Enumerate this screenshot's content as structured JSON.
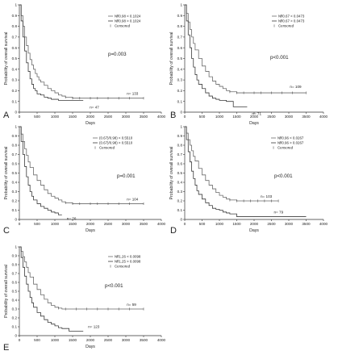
{
  "chart_data": [
    {
      "panel": "A",
      "type": "line",
      "ylabel": "Probability of overall survival",
      "xlabel": "Days",
      "xlim": [
        0,
        4000
      ],
      "ylim": [
        0,
        1
      ],
      "xticks": [
        "0",
        "500",
        "1000",
        "1500",
        "2000",
        "2500",
        "3000",
        "3500",
        "4000"
      ],
      "yticks": [
        "0",
        "0.1",
        "0.2",
        "0.3",
        "0.4",
        "0.5",
        "0.6",
        "0.7",
        "0.8",
        "0.9",
        "1"
      ],
      "legend": [
        "Nfl0.98 < 0.1024",
        "Nfl0.98 > 0.1024",
        "Censored"
      ],
      "pvalue": "p=0.003",
      "series": [
        {
          "name": "Nfl0.98 < 0.1024",
          "n_label": "n= 133",
          "x": [
            0,
            50,
            100,
            150,
            200,
            250,
            300,
            350,
            400,
            450,
            500,
            550,
            600,
            700,
            800,
            900,
            1000,
            1100,
            1200,
            1300,
            1500,
            3500
          ],
          "y": [
            1.0,
            0.9,
            0.8,
            0.7,
            0.62,
            0.55,
            0.49,
            0.44,
            0.4,
            0.36,
            0.33,
            0.3,
            0.28,
            0.25,
            0.22,
            0.2,
            0.18,
            0.16,
            0.15,
            0.14,
            0.13,
            0.13
          ],
          "censored_x": [
            1300,
            1500,
            1700,
            2000,
            2200,
            2500,
            2800,
            3100,
            3500
          ]
        },
        {
          "name": "Nfl0.98 > 0.1024",
          "n_label": "n= 47",
          "x": [
            0,
            50,
            100,
            150,
            200,
            250,
            300,
            350,
            400,
            450,
            500,
            600,
            700,
            800,
            900,
            1000,
            1100,
            1800
          ],
          "y": [
            1.0,
            0.85,
            0.7,
            0.57,
            0.46,
            0.38,
            0.31,
            0.26,
            0.22,
            0.2,
            0.17,
            0.16,
            0.14,
            0.13,
            0.12,
            0.12,
            0.11,
            0.11
          ],
          "censored_x": []
        }
      ]
    },
    {
      "panel": "B",
      "type": "line",
      "ylabel": "Probability of overall survival",
      "xlabel": "Days",
      "xlim": [
        0,
        4000
      ],
      "ylim": [
        0,
        1
      ],
      "xticks": [
        "0",
        "500",
        "1000",
        "1500",
        "2000",
        "2500",
        "3000",
        "3500",
        "4000"
      ],
      "yticks": [
        "0",
        "0.1",
        "0.2",
        "0.3",
        "0.4",
        "0.5",
        "0.6",
        "0.7",
        "0.8",
        "0.9",
        "1"
      ],
      "legend": [
        "Nfl0.67 < 0.0473",
        "Nfl0.67 > 0.0473",
        "Censored"
      ],
      "pvalue": "p<0.001",
      "series": [
        {
          "name": "Nfl0.67 < 0.0473",
          "n_label": "n= 109",
          "x": [
            0,
            50,
            100,
            150,
            200,
            250,
            300,
            400,
            500,
            600,
            700,
            800,
            900,
            1000,
            1100,
            1200,
            1300,
            1500,
            3500
          ],
          "y": [
            1.0,
            0.92,
            0.84,
            0.77,
            0.7,
            0.64,
            0.58,
            0.5,
            0.43,
            0.38,
            0.33,
            0.29,
            0.26,
            0.24,
            0.22,
            0.2,
            0.19,
            0.18,
            0.18
          ],
          "censored_x": [
            1300,
            1500,
            1700,
            2000,
            2200,
            2500,
            2800,
            3100,
            3500
          ]
        },
        {
          "name": "Nfl0.67 > 0.0473",
          "n_label": "n= 71",
          "x": [
            0,
            50,
            100,
            150,
            200,
            250,
            300,
            350,
            400,
            500,
            600,
            700,
            800,
            900,
            1000,
            1200,
            1400,
            1500,
            1800
          ],
          "y": [
            1.0,
            0.85,
            0.72,
            0.6,
            0.5,
            0.42,
            0.35,
            0.3,
            0.26,
            0.22,
            0.18,
            0.15,
            0.13,
            0.12,
            0.11,
            0.1,
            0.05,
            0.05,
            0.05
          ],
          "censored_x": []
        }
      ]
    },
    {
      "panel": "C",
      "type": "line",
      "ylabel": "Probability of overall survival",
      "xlabel": "Days",
      "xlim": [
        0,
        4000
      ],
      "ylim": [
        0,
        1
      ],
      "xticks": [
        "0",
        "500",
        "1000",
        "1500",
        "2000",
        "2500",
        "3000",
        "3500",
        "4000"
      ],
      "yticks": [
        "0",
        "0.1",
        "0.2",
        "0.3",
        "0.4",
        "0.5",
        "0.6",
        "0.7",
        "0.8",
        "0.9",
        "1"
      ],
      "legend": [
        "(0.67)/0.98) < 0.5510",
        "(0.67)/0.98) > 0.5510",
        "Censored"
      ],
      "pvalue": "p=0.001",
      "series": [
        {
          "name": "(0.67)/0.98) < 0.5510",
          "n_label": "n= 104",
          "x": [
            0,
            50,
            100,
            150,
            200,
            250,
            300,
            400,
            500,
            600,
            700,
            800,
            900,
            1000,
            1100,
            1200,
            1300,
            1500,
            3500
          ],
          "y": [
            1.0,
            0.92,
            0.84,
            0.76,
            0.69,
            0.62,
            0.56,
            0.48,
            0.42,
            0.37,
            0.32,
            0.28,
            0.25,
            0.23,
            0.21,
            0.19,
            0.18,
            0.17,
            0.17
          ],
          "censored_x": [
            1300,
            1500,
            1700,
            2000,
            2200,
            2500,
            2800,
            3100,
            3500
          ]
        },
        {
          "name": "(0.67)/0.98) > 0.5510",
          "n_label": "n= 76",
          "x": [
            0,
            50,
            100,
            150,
            200,
            250,
            300,
            350,
            400,
            500,
            600,
            700,
            800,
            900,
            1000,
            1100,
            1200
          ],
          "y": [
            1.0,
            0.84,
            0.7,
            0.57,
            0.46,
            0.37,
            0.3,
            0.25,
            0.21,
            0.17,
            0.14,
            0.12,
            0.1,
            0.08,
            0.07,
            0.05,
            0.05
          ],
          "censored_x": []
        }
      ]
    },
    {
      "panel": "D",
      "type": "line",
      "ylabel": "Probability of overall survival",
      "xlabel": "Days",
      "xlim": [
        0,
        4000
      ],
      "ylim": [
        0,
        1
      ],
      "xticks": [
        "0",
        "500",
        "1000",
        "1500",
        "2000",
        "2500",
        "3000",
        "3500",
        "4000"
      ],
      "yticks": [
        "0",
        "0.1",
        "0.2",
        "0.3",
        "0.4",
        "0.5",
        "0.6",
        "0.7",
        "0.8",
        "0.9",
        "1"
      ],
      "legend": [
        "Nfl0.96 < 0.0267",
        "Nfl0.96 > 0.0267",
        "Censored"
      ],
      "pvalue": "p<0.001",
      "series": [
        {
          "name": "Nfl0.96 < 0.0267",
          "n_label": "n= 103",
          "x": [
            0,
            50,
            100,
            150,
            200,
            250,
            300,
            400,
            500,
            600,
            700,
            800,
            900,
            1000,
            1100,
            1200,
            1300,
            1500,
            2700
          ],
          "y": [
            1.0,
            0.93,
            0.86,
            0.8,
            0.74,
            0.68,
            0.63,
            0.55,
            0.48,
            0.42,
            0.37,
            0.33,
            0.29,
            0.26,
            0.24,
            0.22,
            0.21,
            0.2,
            0.2
          ],
          "censored_x": [
            1300,
            1500,
            1700,
            1900,
            2100,
            2300,
            2500,
            2700
          ]
        },
        {
          "name": "Nfl0.96 > 0.0267",
          "n_label": "n= 79",
          "x": [
            0,
            50,
            100,
            150,
            200,
            250,
            300,
            350,
            400,
            500,
            600,
            700,
            800,
            900,
            1000,
            1100,
            1200,
            1300,
            1500,
            3500
          ],
          "y": [
            1.0,
            0.86,
            0.73,
            0.62,
            0.52,
            0.44,
            0.37,
            0.31,
            0.27,
            0.22,
            0.18,
            0.15,
            0.12,
            0.11,
            0.1,
            0.08,
            0.07,
            0.06,
            0.03,
            0.03
          ],
          "censored_x": []
        }
      ]
    },
    {
      "panel": "E",
      "type": "line",
      "ylabel": "Probability of overall survival",
      "xlabel": "Days",
      "xlim": [
        0,
        4000
      ],
      "ylim": [
        0,
        1
      ],
      "xticks": [
        "0",
        "500",
        "1000",
        "1500",
        "2000",
        "2500",
        "3000",
        "3500",
        "4000"
      ],
      "yticks": [
        "0",
        "0.1",
        "0.2",
        "0.3",
        "0.4",
        "0.5",
        "0.6",
        "0.7",
        "0.8",
        "0.9",
        "1"
      ],
      "legend": [
        "Nfl1.26 < 0.0098",
        "Nfl1.25 > 0.0098",
        "Censored"
      ],
      "pvalue": "p<0.001",
      "series": [
        {
          "name": "Nfl1.26 < 0.0098",
          "n_label": "n= 59",
          "x": [
            0,
            50,
            100,
            150,
            200,
            250,
            300,
            400,
            500,
            600,
            700,
            800,
            900,
            1000,
            1100,
            1200,
            3500
          ],
          "y": [
            1.0,
            0.95,
            0.89,
            0.83,
            0.77,
            0.71,
            0.66,
            0.58,
            0.52,
            0.46,
            0.41,
            0.37,
            0.34,
            0.32,
            0.31,
            0.3,
            0.3
          ],
          "censored_x": [
            1100,
            1300,
            1600,
            1900,
            2200,
            2500,
            2800,
            3100,
            3500
          ]
        },
        {
          "name": "Nfl1.25 > 0.0098",
          "n_label": "n= 123",
          "x": [
            0,
            50,
            100,
            150,
            200,
            250,
            300,
            350,
            400,
            500,
            600,
            700,
            800,
            900,
            1000,
            1100,
            1200,
            1400,
            1800
          ],
          "y": [
            1.0,
            0.88,
            0.77,
            0.67,
            0.58,
            0.5,
            0.43,
            0.37,
            0.32,
            0.26,
            0.22,
            0.18,
            0.15,
            0.13,
            0.11,
            0.09,
            0.08,
            0.05,
            0.05
          ],
          "censored_x": []
        }
      ]
    }
  ]
}
